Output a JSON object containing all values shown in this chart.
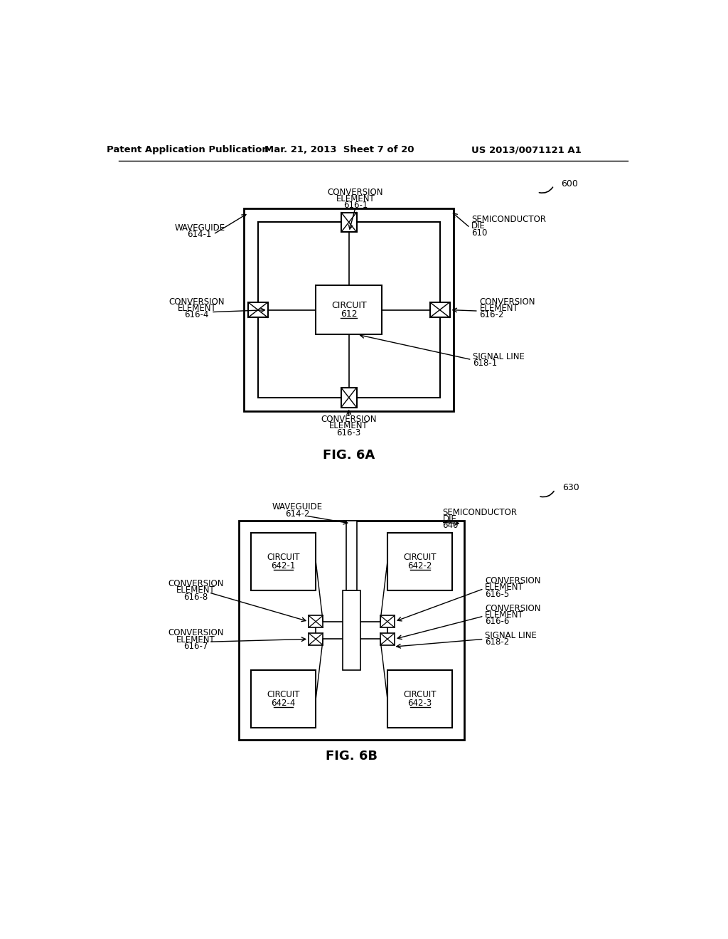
{
  "bg_color": "#ffffff",
  "text_color": "#000000",
  "line_color": "#000000",
  "header_left": "Patent Application Publication",
  "header_mid": "Mar. 21, 2013  Sheet 7 of 20",
  "header_right": "US 2013/0071121 A1",
  "fig6a_label": "FIG. 6A",
  "fig6b_label": "FIG. 6B",
  "fig6a_ref": "600",
  "fig6b_ref": "630"
}
